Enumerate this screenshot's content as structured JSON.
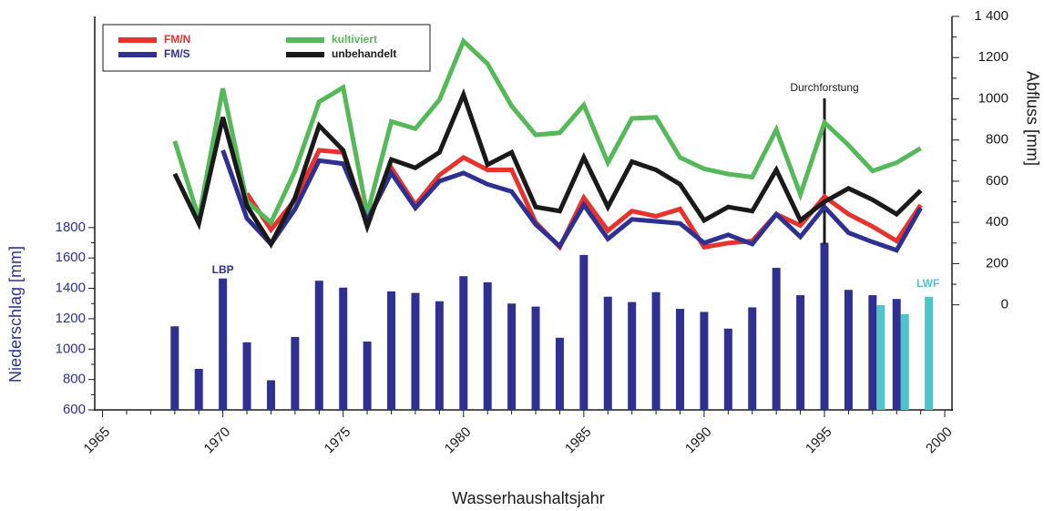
{
  "chart_data": {
    "type": "bar",
    "xlabel": "Wasserhaushaltsjahr",
    "ylabel": "Niederschlag [mm]",
    "y2label": "Abfluss [mm]",
    "xlim": [
      1964.6,
      2000.3
    ],
    "xticks": [
      1965,
      1970,
      1975,
      1980,
      1985,
      1990,
      1995,
      2000
    ],
    "ylim": [
      600,
      3190
    ],
    "yticks": [
      600,
      800,
      1000,
      1200,
      1400,
      1600,
      1800
    ],
    "y2lim": [
      -510,
      1400
    ],
    "y2ticks": [
      0,
      200,
      400,
      600,
      800,
      1000,
      1200,
      {
        "value": 1400,
        "label": "1 400"
      }
    ],
    "annotations": [
      {
        "text": "LBP",
        "x": 1970
      },
      {
        "text": "LWF",
        "x": 1999
      },
      {
        "text": "Durchforstung",
        "x": 1995
      }
    ],
    "series": [
      {
        "type": "bar",
        "color": "#2e3192",
        "x": [
          1968,
          1969,
          1970,
          1971,
          1972,
          1973,
          1974,
          1975,
          1976,
          1977,
          1978,
          1979,
          1980,
          1981,
          1982,
          1983,
          1984,
          1985,
          1986,
          1987,
          1988,
          1989,
          1990,
          1991,
          1992,
          1993,
          1994,
          1995,
          1996,
          1997,
          1998
        ],
        "values": [
          1150,
          870,
          1465,
          1045,
          795,
          1080,
          1450,
          1405,
          1050,
          1380,
          1370,
          1315,
          1480,
          1440,
          1300,
          1280,
          1075,
          1620,
          1345,
          1310,
          1375,
          1265,
          1245,
          1135,
          1275,
          1535,
          1355,
          1700,
          1390,
          1355,
          1330
        ]
      },
      {
        "type": "bar",
        "color": "#4fc4c9",
        "x": [
          1997,
          1998,
          1999
        ],
        "values": [
          1290,
          1230,
          1345
        ]
      },
      {
        "type": "line",
        "name": "FM/N",
        "color": "#e8322d",
        "axis": "y2",
        "x": [
          1971,
          1972,
          1973,
          1974,
          1975,
          1976,
          1977,
          1978,
          1979,
          1980,
          1981,
          1982,
          1983,
          1984,
          1985,
          1986,
          1987,
          1988,
          1989,
          1990,
          1991,
          1992,
          1993,
          1994,
          1995,
          1996,
          1997,
          1998,
          1999
        ],
        "values": [
          540,
          365,
          510,
          750,
          740,
          405,
          665,
          485,
          630,
          715,
          655,
          655,
          400,
          280,
          520,
          360,
          455,
          430,
          465,
          280,
          300,
          310,
          440,
          385,
          525,
          440,
          380,
          310,
          485
        ]
      },
      {
        "type": "line",
        "name": "kultiviert",
        "color": "#55b95a",
        "axis": "y2",
        "x": [
          1968,
          1969,
          1970,
          1971,
          1972,
          1973,
          1974,
          1975,
          1976,
          1977,
          1978,
          1979,
          1980,
          1981,
          1982,
          1983,
          1984,
          1985,
          1986,
          1987,
          1988,
          1989,
          1990,
          1991,
          1992,
          1993,
          1994,
          1995,
          1996,
          1997,
          1998,
          1999
        ],
        "values": [
          795,
          420,
          1050,
          500,
          400,
          650,
          985,
          1055,
          440,
          890,
          855,
          995,
          1280,
          1170,
          965,
          825,
          835,
          970,
          690,
          905,
          910,
          715,
          660,
          635,
          620,
          850,
          535,
          885,
          775,
          650,
          690,
          760
        ]
      },
      {
        "type": "line",
        "name": "FM/S",
        "color": "#2e3192",
        "axis": "y2",
        "x": [
          1970,
          1971,
          1972,
          1973,
          1974,
          1975,
          1976,
          1977,
          1978,
          1979,
          1980,
          1981,
          1982,
          1983,
          1984,
          1985,
          1986,
          1987,
          1988,
          1989,
          1990,
          1991,
          1992,
          1993,
          1994,
          1995,
          1996,
          1997,
          1998,
          1999
        ],
        "values": [
          750,
          420,
          295,
          465,
          700,
          685,
          410,
          640,
          470,
          600,
          640,
          585,
          550,
          390,
          285,
          485,
          320,
          415,
          405,
          395,
          300,
          340,
          295,
          440,
          330,
          475,
          350,
          305,
          265,
          470
        ]
      },
      {
        "type": "line",
        "name": "unbehandelt",
        "color": "#1a1a1a",
        "axis": "y2",
        "x": [
          1968,
          1969,
          1970,
          1971,
          1972,
          1973,
          1974,
          1975,
          1976,
          1977,
          1978,
          1979,
          1980,
          1981,
          1982,
          1983,
          1984,
          1985,
          1986,
          1987,
          1988,
          1989,
          1990,
          1991,
          1992,
          1993,
          1994,
          1995,
          1996,
          1997,
          1998,
          1999
        ],
        "values": [
          636,
          395,
          910,
          480,
          295,
          520,
          870,
          750,
          380,
          705,
          665,
          740,
          1020,
          680,
          740,
          475,
          455,
          715,
          475,
          695,
          655,
          585,
          410,
          475,
          455,
          655,
          410,
          500,
          565,
          510,
          440,
          555
        ]
      }
    ]
  }
}
